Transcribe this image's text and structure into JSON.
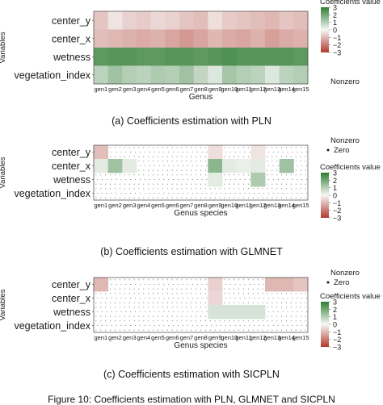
{
  "figure_caption": "Figure 10: Coefficients estimation with PLN, GLMNET and SICPLN",
  "colors": {
    "low": "#b03a2e",
    "mid": "#f7f7f7",
    "high": "#2f7d32",
    "grid_dot": "#6d6d6d",
    "panel_border": "#444444"
  },
  "chart_data": [
    {
      "type": "heatmap",
      "caption": "(a) Coefficients estimation with PLN",
      "ylabel": "Variables",
      "xlabel": "Genus",
      "x": [
        "gen1",
        "gen2",
        "gen3",
        "gen4",
        "gen5",
        "gen6",
        "gen7",
        "gen8",
        "gen9",
        "gen10",
        "gen11",
        "gen12",
        "gen13",
        "gen14",
        "gen15"
      ],
      "y": [
        "center_y",
        "center_x",
        "wetness",
        "vegetation_index"
      ],
      "values": [
        [
          -0.8,
          -0.3,
          -0.6,
          -0.7,
          -0.5,
          -0.6,
          -0.8,
          -0.9,
          -0.4,
          -0.7,
          -0.8,
          -0.9,
          -1.0,
          -0.8,
          -0.9
        ],
        [
          -0.9,
          -1.0,
          -1.1,
          -1.2,
          -1.1,
          -1.3,
          -1.5,
          -1.3,
          -1.0,
          -1.2,
          -1.3,
          -1.1,
          -1.4,
          -1.2,
          -1.1
        ],
        [
          2.3,
          2.4,
          2.4,
          2.3,
          2.3,
          2.4,
          2.4,
          2.3,
          2.4,
          2.5,
          2.4,
          2.4,
          2.4,
          2.4,
          2.3
        ],
        [
          0.9,
          1.3,
          1.0,
          0.9,
          1.1,
          1.0,
          1.3,
          0.8,
          0.4,
          1.2,
          1.0,
          0.9,
          0.4,
          0.9,
          1.0
        ]
      ],
      "nonzero": [
        [
          true,
          true,
          true,
          true,
          true,
          true,
          true,
          true,
          true,
          true,
          true,
          true,
          true,
          true,
          true
        ],
        [
          true,
          true,
          true,
          true,
          true,
          true,
          true,
          true,
          true,
          true,
          true,
          true,
          true,
          true,
          true
        ],
        [
          true,
          true,
          true,
          true,
          true,
          true,
          true,
          true,
          true,
          true,
          true,
          true,
          true,
          true,
          true
        ],
        [
          true,
          true,
          true,
          true,
          true,
          true,
          true,
          true,
          true,
          true,
          true,
          true,
          true,
          true,
          true
        ]
      ],
      "legend": {
        "title": "Coefficients value",
        "ticks": [
          3,
          2,
          1,
          0,
          -1,
          -2,
          -3
        ],
        "range": [
          -3,
          3
        ],
        "nonzero_title": "Nonzero",
        "zero_label": ""
      }
    },
    {
      "type": "heatmap",
      "caption": "(b) Coefficients estimation with GLMNET",
      "ylabel": "Variables",
      "xlabel": "Genus species",
      "x": [
        "gen1",
        "gen2",
        "gen3",
        "gen4",
        "gen5",
        "gen6",
        "gen7",
        "gen8",
        "gen9",
        "gen10",
        "gen11",
        "gen12",
        "gen13",
        "gen14",
        "gen15"
      ],
      "y": [
        "center_y",
        "center_x",
        "wetness",
        "vegetation_index"
      ],
      "values": [
        [
          -0.9,
          0,
          0,
          0,
          0,
          0,
          0,
          0,
          -0.4,
          0,
          0,
          -0.3,
          0,
          0,
          0
        ],
        [
          0.3,
          1.3,
          0.3,
          0,
          0,
          0,
          0,
          0,
          1.6,
          0.3,
          0.2,
          0.3,
          0,
          1.3,
          0
        ],
        [
          0,
          0,
          0,
          0,
          0,
          0,
          0,
          0,
          0.3,
          0,
          0,
          1.1,
          0,
          0,
          0
        ],
        [
          0,
          0,
          0,
          0,
          0,
          0,
          0,
          0,
          0,
          0,
          0,
          0,
          0,
          0,
          0
        ]
      ],
      "nonzero": [
        [
          true,
          false,
          false,
          false,
          false,
          false,
          false,
          false,
          true,
          false,
          false,
          true,
          false,
          false,
          false
        ],
        [
          true,
          true,
          true,
          false,
          false,
          false,
          false,
          false,
          true,
          true,
          true,
          true,
          false,
          true,
          false
        ],
        [
          false,
          false,
          false,
          false,
          false,
          false,
          false,
          false,
          true,
          false,
          false,
          true,
          false,
          false,
          false
        ],
        [
          false,
          false,
          false,
          false,
          false,
          false,
          false,
          false,
          false,
          false,
          false,
          false,
          false,
          false,
          false
        ]
      ],
      "legend": {
        "title": "Coefficients value",
        "ticks": [
          3,
          2,
          1,
          0,
          -1,
          -2,
          -3
        ],
        "range": [
          -3,
          3
        ],
        "nonzero_title": "Nonzero",
        "zero_label": "Zero"
      }
    },
    {
      "type": "heatmap",
      "caption": "(c) Coefficients estimation with SICPLN",
      "ylabel": "Variables",
      "xlabel": "Genus species",
      "x": [
        "gen1",
        "gen2",
        "gen3",
        "gen4",
        "gen5",
        "gen6",
        "gen7",
        "gen8",
        "gen9",
        "gen10",
        "gen11",
        "gen12",
        "gen13",
        "gen14",
        "gen15"
      ],
      "y": [
        "center_y",
        "center_x",
        "wetness",
        "vegetation_index"
      ],
      "values": [
        [
          -1.0,
          0,
          0,
          0,
          0,
          0,
          0,
          0,
          -0.6,
          0,
          0,
          0,
          -1.0,
          -1.0,
          -0.8
        ],
        [
          0,
          0,
          0,
          0,
          0,
          0,
          0,
          0,
          -0.5,
          0,
          0,
          0,
          0,
          0,
          0
        ],
        [
          0,
          0,
          0,
          0,
          0,
          0,
          0,
          0,
          0.5,
          0.5,
          0.5,
          0.5,
          0,
          0,
          0
        ],
        [
          0,
          0,
          0,
          0,
          0,
          0,
          0,
          0,
          0,
          0,
          0,
          0,
          0,
          0,
          0
        ]
      ],
      "nonzero": [
        [
          true,
          false,
          false,
          false,
          false,
          false,
          false,
          false,
          true,
          false,
          false,
          false,
          true,
          true,
          true
        ],
        [
          false,
          false,
          false,
          false,
          false,
          false,
          false,
          false,
          true,
          false,
          false,
          false,
          false,
          false,
          false
        ],
        [
          false,
          false,
          false,
          false,
          false,
          false,
          false,
          false,
          true,
          true,
          true,
          true,
          false,
          false,
          false
        ],
        [
          false,
          false,
          false,
          false,
          false,
          false,
          false,
          false,
          false,
          false,
          false,
          false,
          false,
          false,
          false
        ]
      ],
      "legend": {
        "title": "Coefficients value",
        "ticks": [
          3,
          2,
          1,
          0,
          -1,
          -2,
          -3
        ],
        "range": [
          -3,
          3
        ],
        "nonzero_title": "Nonzero",
        "zero_label": "Zero"
      }
    }
  ]
}
